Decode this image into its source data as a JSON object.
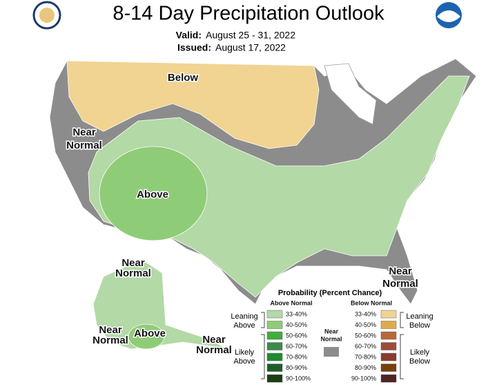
{
  "header": {
    "title": "8-14 Day Precipitation Outlook",
    "valid_label": "Valid:",
    "valid_value": "August 25 - 31, 2022",
    "issued_label": "Issued:",
    "issued_value": "August 17, 2022"
  },
  "map_labels": [
    [
      "Below"
    ],
    [
      "Near",
      "Normal"
    ],
    [
      "Above"
    ],
    [
      "Near",
      "Normal"
    ],
    [
      "Near",
      "Normal"
    ],
    [
      "Near",
      "Normal"
    ],
    [
      "Above"
    ],
    [
      "Near",
      "Normal"
    ]
  ],
  "legend": {
    "title": "Probability (Percent Chance)",
    "above_header": "Above Normal",
    "below_header": "Below Normal",
    "above_bins": [
      "33-40%",
      "40-50%",
      "50-60%",
      "60-70%",
      "70-80%",
      "80-90%",
      "90-100%"
    ],
    "below_bins": [
      "33-40%",
      "40-50%",
      "50-60%",
      "60-70%",
      "70-80%",
      "80-90%",
      "90-100%"
    ],
    "leaning_above": [
      "Leaning",
      "Above"
    ],
    "likely_above": [
      "Likely",
      "Above"
    ],
    "near_normal": [
      "Near",
      "Normal"
    ],
    "leaning_below": [
      "Leaning",
      "Below"
    ],
    "likely_below": [
      "Likely",
      "Below"
    ]
  }
}
